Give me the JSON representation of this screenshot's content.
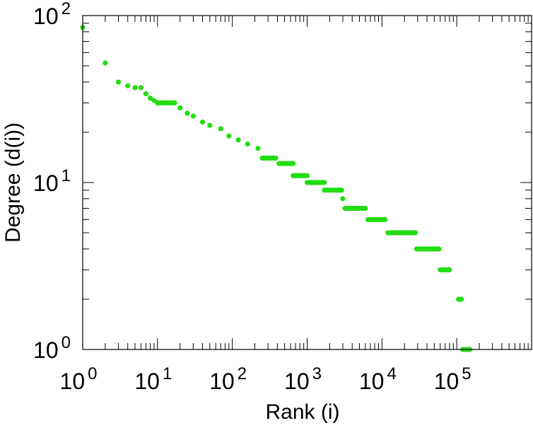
{
  "chart_data": {
    "type": "scatter",
    "title": "",
    "xlabel": "Rank (i)",
    "ylabel": "Degree (d(i))",
    "x_scale": "log",
    "y_scale": "log",
    "xlim": [
      1,
      1000000
    ],
    "ylim": [
      1,
      100
    ],
    "grid": false,
    "legend": "none",
    "marker_color": "#22dd11",
    "x_ticks": [
      {
        "base": "10",
        "exp": "0",
        "value": 1
      },
      {
        "base": "10",
        "exp": "1",
        "value": 10
      },
      {
        "base": "10",
        "exp": "2",
        "value": 100
      },
      {
        "base": "10",
        "exp": "3",
        "value": 1000
      },
      {
        "base": "10",
        "exp": "4",
        "value": 10000
      },
      {
        "base": "10",
        "exp": "5",
        "value": 100000
      }
    ],
    "y_ticks": [
      {
        "base": "10",
        "exp": "0",
        "value": 1
      },
      {
        "base": "10",
        "exp": "1",
        "value": 10
      },
      {
        "base": "10",
        "exp": "2",
        "value": 100
      }
    ],
    "points": [
      {
        "x": 1,
        "y": 85
      },
      {
        "x": 2,
        "y": 52
      },
      {
        "x": 3,
        "y": 40
      },
      {
        "x": 4,
        "y": 38
      },
      {
        "x": 5,
        "y": 37
      },
      {
        "x": 6,
        "y": 37
      },
      {
        "x": 7,
        "y": 34
      },
      {
        "x": 8,
        "y": 32
      },
      {
        "x": 9,
        "y": 31
      },
      {
        "x": 10,
        "y": 30
      },
      {
        "x": 15,
        "y": 30
      },
      {
        "x": 20,
        "y": 28
      },
      {
        "x": 25,
        "y": 26
      },
      {
        "x": 30,
        "y": 25
      },
      {
        "x": 40,
        "y": 23
      },
      {
        "x": 50,
        "y": 22
      },
      {
        "x": 70,
        "y": 21
      },
      {
        "x": 90,
        "y": 19
      },
      {
        "x": 120,
        "y": 18
      },
      {
        "x": 160,
        "y": 17
      },
      {
        "x": 220,
        "y": 16
      },
      {
        "x": 300,
        "y": 14
      },
      {
        "x": 450,
        "y": 13
      },
      {
        "x": 700,
        "y": 11
      },
      {
        "x": 1100,
        "y": 10
      },
      {
        "x": 1700,
        "y": 9
      },
      {
        "x": 3000,
        "y": 8
      },
      {
        "x": 5000,
        "y": 7
      },
      {
        "x": 8000,
        "y": 6
      },
      {
        "x": 15000,
        "y": 5
      },
      {
        "x": 35000,
        "y": 4
      },
      {
        "x": 65000,
        "y": 3
      },
      {
        "x": 115000,
        "y": 2
      },
      {
        "x": 130000,
        "y": 1
      }
    ],
    "segments": [
      {
        "x_start": 10,
        "x_end": 17,
        "y": 30
      },
      {
        "x_start": 250,
        "x_end": 380,
        "y": 14
      },
      {
        "x_start": 420,
        "x_end": 650,
        "y": 13
      },
      {
        "x_start": 650,
        "x_end": 1000,
        "y": 11
      },
      {
        "x_start": 1000,
        "x_end": 1700,
        "y": 10
      },
      {
        "x_start": 1700,
        "x_end": 2900,
        "y": 9
      },
      {
        "x_start": 3200,
        "x_end": 6000,
        "y": 7
      },
      {
        "x_start": 6500,
        "x_end": 11000,
        "y": 6
      },
      {
        "x_start": 12000,
        "x_end": 28000,
        "y": 5
      },
      {
        "x_start": 29000,
        "x_end": 58000,
        "y": 4
      },
      {
        "x_start": 60000,
        "x_end": 80000,
        "y": 3
      },
      {
        "x_start": 105000,
        "x_end": 115000,
        "y": 2
      },
      {
        "x_start": 120000,
        "x_end": 150000,
        "y": 1
      }
    ]
  }
}
